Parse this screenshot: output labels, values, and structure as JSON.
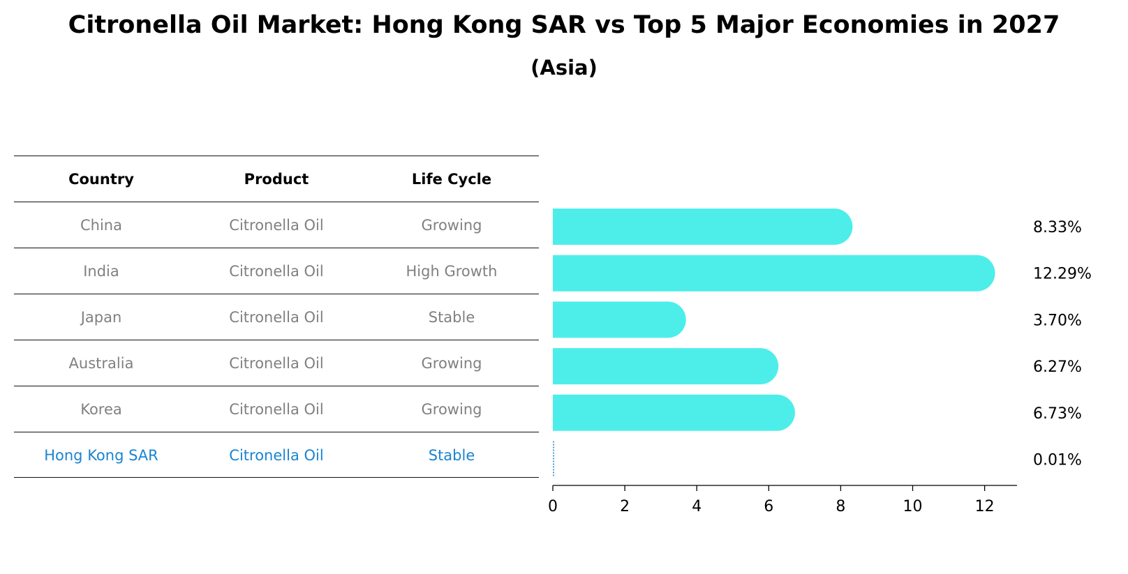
{
  "header": {
    "title": "Citronella Oil Market: Hong Kong SAR vs Top 5 Major Economies in 2027",
    "subtitle": "(Asia)"
  },
  "table": {
    "columns": [
      "Country",
      "Product",
      "Life Cycle"
    ],
    "rows": [
      {
        "country": "China",
        "product": "Citronella Oil",
        "life_cycle": "Growing"
      },
      {
        "country": "India",
        "product": "Citronella Oil",
        "life_cycle": "High Growth"
      },
      {
        "country": "Japan",
        "product": "Citronella Oil",
        "life_cycle": "Stable"
      },
      {
        "country": "Australia",
        "product": "Citronella Oil",
        "life_cycle": "Growing"
      },
      {
        "country": "Korea",
        "product": "Citronella Oil",
        "life_cycle": "Growing"
      },
      {
        "country": "Hong Kong SAR",
        "product": "Citronella Oil",
        "life_cycle": "Stable"
      }
    ]
  },
  "colors": {
    "bar": "#4deeea",
    "highlight": "#1a84d1",
    "muted_text": "#808080"
  },
  "chart_data": {
    "type": "bar",
    "orientation": "horizontal",
    "categories": [
      "China",
      "India",
      "Japan",
      "Australia",
      "Korea",
      "Hong Kong SAR"
    ],
    "values": [
      8.33,
      12.29,
      3.7,
      6.27,
      6.73,
      0.01
    ],
    "value_labels": [
      "8.33%",
      "12.29%",
      "3.70%",
      "6.27%",
      "6.73%",
      "0.01%"
    ],
    "xlim": [
      0,
      12.9
    ],
    "xticks": [
      0,
      2,
      4,
      6,
      8,
      10,
      12
    ],
    "grid": false
  }
}
